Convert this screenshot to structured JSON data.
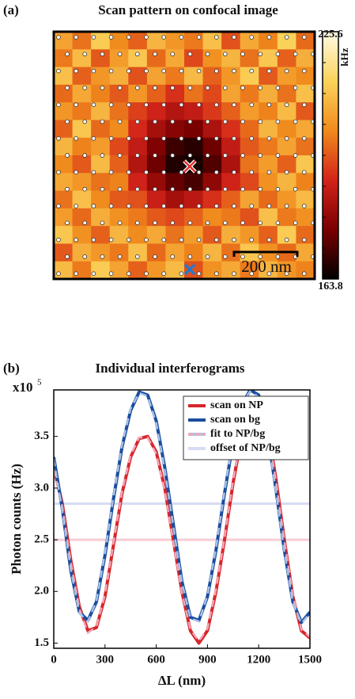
{
  "chart_data": [
    {
      "type": "heatmap",
      "label": "(a)",
      "title": "Scan pattern on confocal image",
      "values": [
        [
          205,
          198,
          212,
          201,
          196,
          208,
          203,
          199,
          210,
          194,
          206,
          200,
          213,
          197
        ],
        [
          199,
          209,
          195,
          204,
          211,
          197,
          206,
          193,
          202,
          208,
          198,
          211,
          196,
          207
        ],
        [
          210,
          196,
          203,
          207,
          194,
          205,
          199,
          209,
          196,
          203,
          212,
          195,
          204,
          201
        ],
        [
          197,
          206,
          200,
          195,
          203,
          196,
          190,
          198,
          193,
          205,
          199,
          207,
          198,
          210
        ],
        [
          203,
          199,
          208,
          198,
          192,
          188,
          184,
          186,
          191,
          196,
          204,
          200,
          209,
          195
        ],
        [
          196,
          211,
          197,
          201,
          189,
          182,
          178,
          176,
          183,
          190,
          197,
          208,
          201,
          206
        ],
        [
          208,
          200,
          204,
          193,
          186,
          177,
          170,
          168,
          175,
          186,
          195,
          199,
          205,
          198
        ],
        [
          201,
          195,
          209,
          196,
          184,
          175,
          167,
          166,
          172,
          183,
          198,
          204,
          196,
          211
        ],
        [
          206,
          203,
          198,
          200,
          188,
          180,
          174,
          171,
          179,
          188,
          193,
          202,
          208,
          200
        ],
        [
          198,
          210,
          201,
          195,
          194,
          187,
          182,
          185,
          190,
          196,
          205,
          197,
          203,
          209
        ],
        [
          204,
          197,
          207,
          202,
          199,
          195,
          193,
          196,
          201,
          199,
          194,
          210,
          199,
          202
        ],
        [
          211,
          202,
          196,
          208,
          201,
          206,
          198,
          204,
          195,
          207,
          203,
          196,
          212,
          197
        ],
        [
          195,
          207,
          203,
          199,
          210,
          197,
          205,
          200,
          208,
          198,
          211,
          202,
          197,
          206
        ],
        [
          209,
          199,
          212,
          205,
          196,
          203,
          209,
          194,
          202,
          206,
          199,
          208,
          203,
          200
        ]
      ],
      "clim": [
        163.8,
        225.6
      ],
      "cticks": [
        163.8,
        225.6
      ],
      "colorbar_label": "kHz",
      "colormap": [
        "#000000",
        "#7a0000",
        "#d3231a",
        "#f08a1c",
        "#fbd35a",
        "#fffbe6"
      ],
      "scale_bar": "200 nm"
    },
    {
      "type": "line",
      "label": "(b)",
      "title": "Individual interferograms",
      "y_multiplier": "x10",
      "y_multiplier_exponent": "5",
      "xlabel": "ΔL (nm)",
      "ylabel": "Photon counts (Hz)",
      "xlim": [
        0,
        1500
      ],
      "xticks": [
        0,
        300,
        600,
        900,
        1200,
        1500
      ],
      "ylim": [
        1.45,
        3.95
      ],
      "yticks": [
        1.5,
        {
          "value": 2,
          "label": "2.0"
        },
        2.5,
        {
          "value": 3,
          "label": "3.0"
        },
        3.5
      ],
      "x": [
        0,
        50,
        100,
        150,
        200,
        250,
        300,
        350,
        400,
        450,
        500,
        550,
        600,
        650,
        700,
        750,
        800,
        850,
        900,
        950,
        1000,
        1050,
        1100,
        1150,
        1200,
        1250,
        1300,
        1350,
        1400,
        1450,
        1500
      ],
      "series": [
        {
          "name": "scan on NP",
          "color": "#d7262b",
          "values": [
            3.2,
            2.85,
            2.3,
            1.85,
            1.62,
            1.65,
            1.95,
            2.45,
            2.95,
            3.3,
            3.48,
            3.5,
            3.35,
            3.0,
            2.5,
            2.0,
            1.62,
            1.5,
            1.62,
            2.0,
            2.5,
            3.05,
            3.5,
            3.8,
            3.85,
            3.6,
            3.1,
            2.5,
            1.95,
            1.62,
            1.55
          ]
        },
        {
          "name": "scan on bg",
          "color": "#1a4d9e",
          "values": [
            3.3,
            2.8,
            2.2,
            1.8,
            1.72,
            1.9,
            2.35,
            2.9,
            3.4,
            3.75,
            3.93,
            3.9,
            3.65,
            3.2,
            2.65,
            2.1,
            1.75,
            1.72,
            1.95,
            2.4,
            2.95,
            3.45,
            3.8,
            3.95,
            3.9,
            3.55,
            3.0,
            2.4,
            1.9,
            1.7,
            1.8
          ]
        },
        {
          "name": "fit to NP/bg",
          "colors": [
            "#f3a6b6",
            "#a9c2e6"
          ],
          "curves": [
            [
              3.18,
              2.82,
              2.28,
              1.83,
              1.6,
              1.66,
              1.97,
              2.47,
              2.97,
              3.32,
              3.49,
              3.49,
              3.33,
              2.98,
              2.48,
              1.99,
              1.63,
              1.52,
              1.64,
              2.02,
              2.52,
              3.07,
              3.52,
              3.79,
              3.83,
              3.58,
              3.08,
              2.49,
              1.96,
              1.63,
              1.56
            ],
            [
              3.28,
              2.78,
              2.21,
              1.79,
              1.71,
              1.91,
              2.37,
              2.92,
              3.42,
              3.77,
              3.92,
              3.89,
              3.63,
              3.18,
              2.63,
              2.09,
              1.74,
              1.71,
              1.96,
              2.42,
              2.97,
              3.47,
              3.81,
              3.94,
              3.88,
              3.53,
              2.98,
              2.39,
              1.89,
              1.69,
              1.79
            ]
          ]
        },
        {
          "name": "offset of NP/bg",
          "colors": [
            "#f8ccd3",
            "#d7dcf3"
          ],
          "levels": [
            2.5,
            2.85
          ]
        }
      ],
      "legend": "upper right"
    }
  ]
}
